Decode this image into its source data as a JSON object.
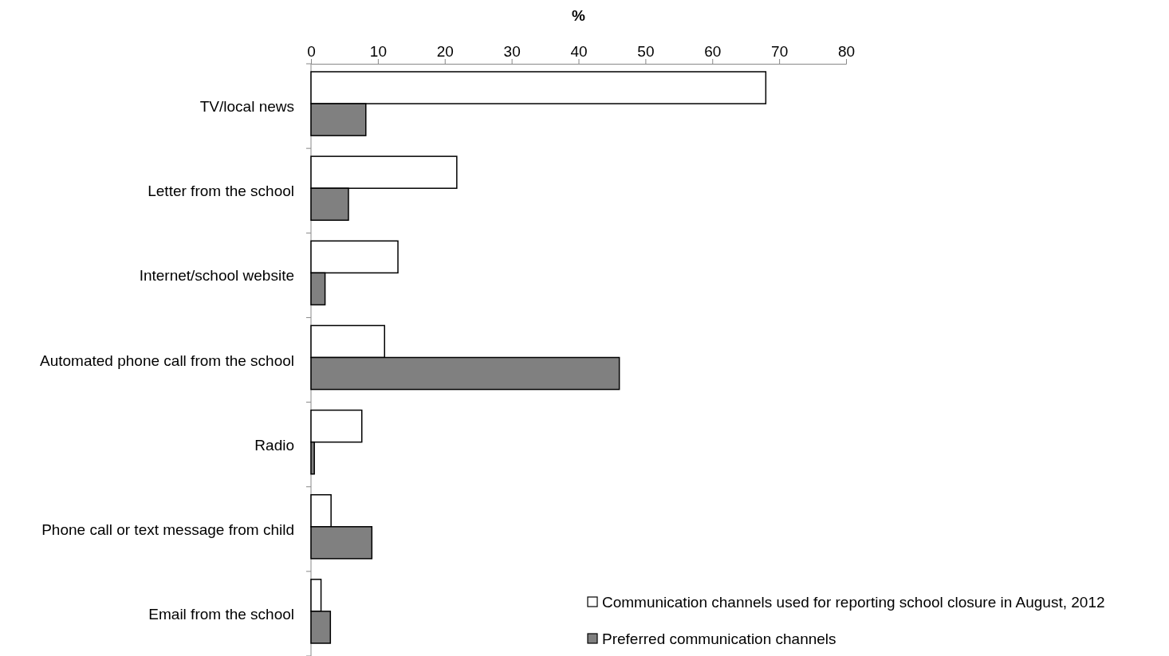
{
  "chart_data": {
    "type": "bar",
    "orientation": "horizontal",
    "xlabel": "%",
    "categories": [
      "TV/local news",
      "Letter from the school",
      "Internet/school website",
      "Automated phone call from the school",
      "Radio",
      "Phone call or text message from child",
      "Email from the school"
    ],
    "series": [
      {
        "name": "Communication  channels used for reporting school closure in August, 2012",
        "color": "#ffffff",
        "values": [
          68,
          21.8,
          13,
          11,
          7.6,
          3,
          1.5
        ]
      },
      {
        "name": "Preferred communication channels",
        "color": "#808080",
        "values": [
          8.2,
          5.6,
          2.1,
          46.1,
          0.5,
          9.1,
          2.9
        ]
      }
    ],
    "xlim": [
      0,
      80
    ],
    "xticks": [
      0,
      10,
      20,
      30,
      40,
      50,
      60,
      70,
      80
    ],
    "grid": false,
    "legend": "bottom right"
  }
}
